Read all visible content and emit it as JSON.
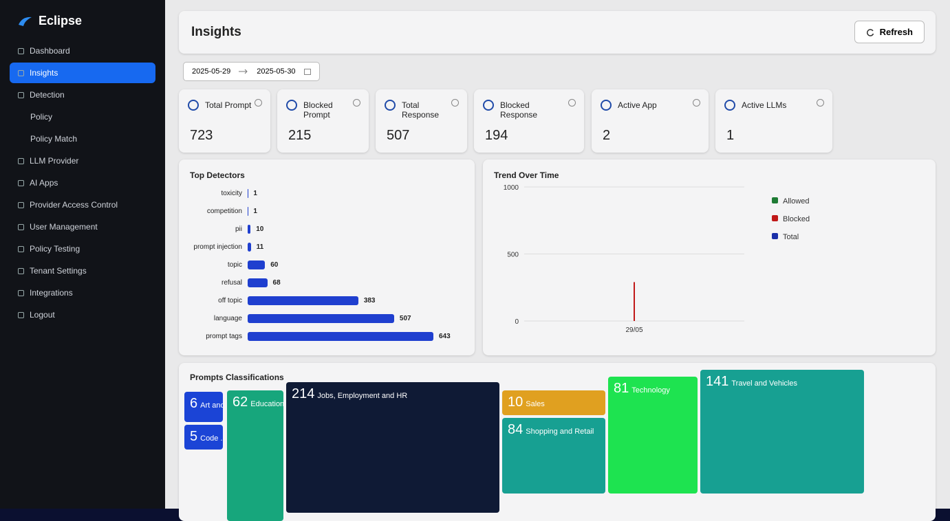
{
  "sidebar": {
    "brand": "Eclipse",
    "nav": [
      "Dashboard",
      "Insights",
      "Detection",
      "Policy",
      "Policy Match",
      "LLM Provider",
      "AI Apps",
      "Provider Access Control",
      "User Management",
      "Policy Testing",
      "Tenant Settings",
      "Integrations",
      "Logout"
    ],
    "active": 1
  },
  "header": {
    "title": "Insights",
    "refresh": "Refresh"
  },
  "date_range": {
    "start": "2025-05-29",
    "end": "2025-05-30"
  },
  "cards": [
    {
      "label": "Total Prompt",
      "value": 723
    },
    {
      "label": "Blocked Prompt",
      "value": 215
    },
    {
      "label": "Total Response",
      "value": 507
    },
    {
      "label": "Blocked Response",
      "value": 194
    },
    {
      "label": "Active App",
      "value": 2
    },
    {
      "label": "Active LLMs",
      "value": 1
    }
  ],
  "top_detectors": {
    "type": "bar",
    "title": "Top Detectors",
    "color": "#1f3fcf",
    "categories": [
      "toxicity",
      "competition",
      "pii",
      "prompt injection",
      "topic",
      "refusal",
      "off topic",
      "language",
      "prompt tags"
    ],
    "values": [
      1,
      1,
      10,
      11,
      60,
      68,
      383,
      507,
      643
    ]
  },
  "trend": {
    "type": "line",
    "title": "Trend Over Time",
    "categories": [
      "29/05"
    ],
    "ylim": [
      0,
      1000
    ],
    "yticks": [
      0,
      500,
      1000
    ],
    "series": [
      {
        "name": "Allowed",
        "color": "#1e7b34",
        "values": [
          null
        ]
      },
      {
        "name": "Blocked",
        "color": "#c01818",
        "values": [
          290
        ]
      },
      {
        "name": "Total",
        "color": "#1a2fa8",
        "values": [
          null
        ]
      }
    ]
  },
  "classifications": {
    "title": "Prompts Classifications",
    "tiles": [
      {
        "value": 6,
        "label": "Art and ..."
      },
      {
        "value": 62,
        "label": "Education"
      },
      {
        "value": 214,
        "label": "Jobs, Employment and HR"
      },
      {
        "value": 5,
        "label": "Code ..."
      },
      {
        "value": 10,
        "label": "Sales"
      },
      {
        "value": 84,
        "label": "Shopping and Retail"
      },
      {
        "value": 81,
        "label": "Technology"
      },
      {
        "value": 141,
        "label": "Travel and Vehicles"
      }
    ]
  }
}
